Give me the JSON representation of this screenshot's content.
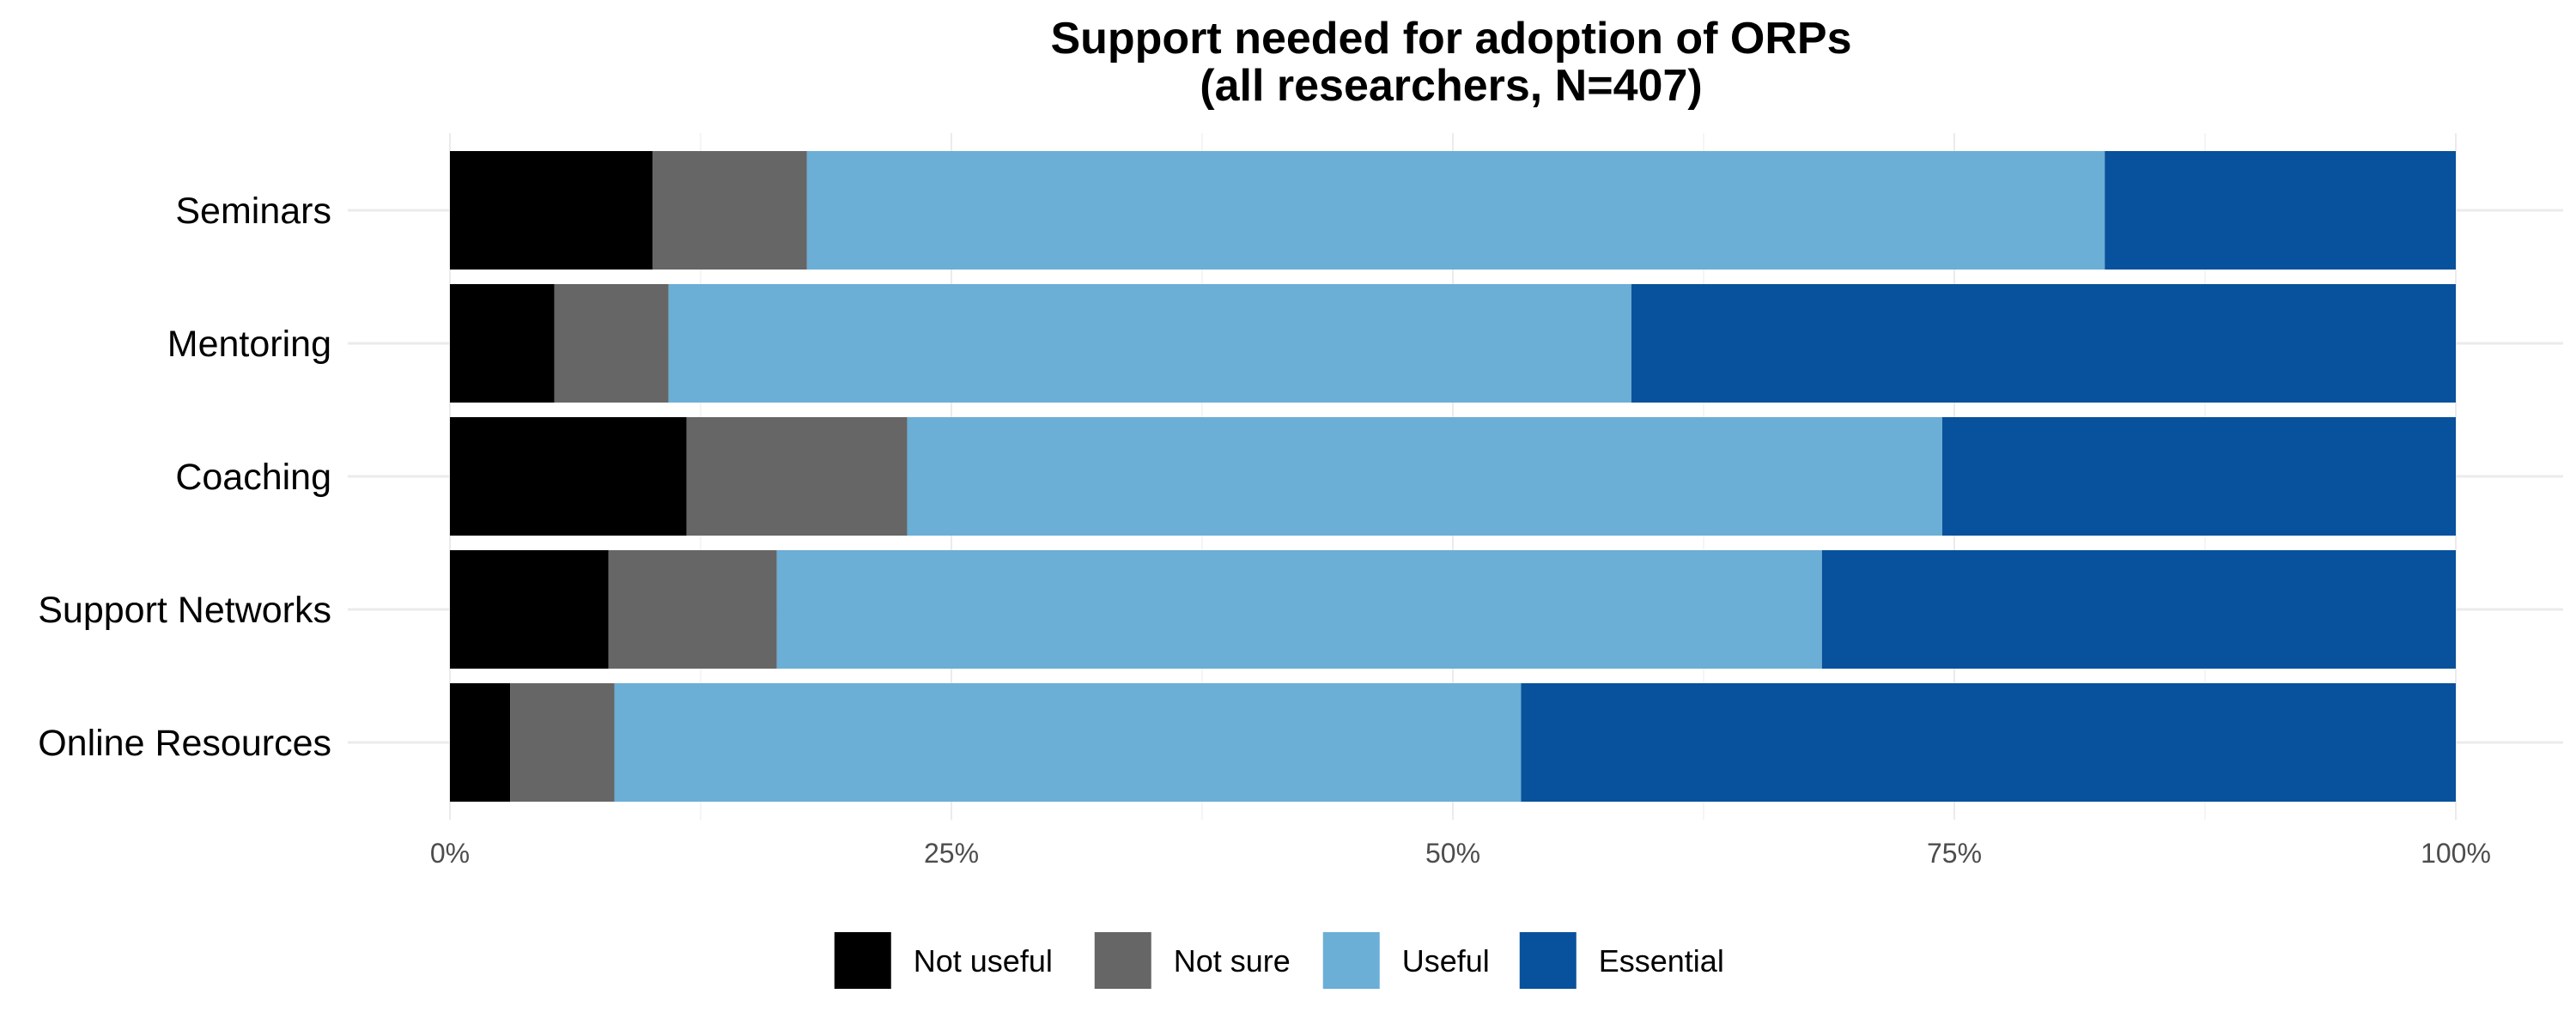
{
  "chart_data": {
    "type": "bar",
    "orientation": "horizontal",
    "stacked": true,
    "normalized_percent": true,
    "title": "Support needed for adoption of ORPs",
    "subtitle": "(all researchers, N=407)",
    "xlabel": "",
    "ylabel": "",
    "xlim": [
      0,
      100
    ],
    "x_ticks": [
      "0%",
      "25%",
      "50%",
      "75%",
      "100%"
    ],
    "categories": [
      "Seminars",
      "Mentoring",
      "Coaching",
      "Support Networks",
      "Online Resources"
    ],
    "series": [
      {
        "name": "Not useful",
        "color": "#000000",
        "values": [
          10.1,
          5.2,
          11.8,
          7.9,
          3.0
        ]
      },
      {
        "name": "Not sure",
        "color": "#666666",
        "values": [
          7.7,
          5.7,
          11.0,
          8.4,
          5.2
        ]
      },
      {
        "name": "Useful",
        "color": "#6baed6",
        "values": [
          64.7,
          48.0,
          51.6,
          52.1,
          45.2
        ]
      },
      {
        "name": "Essential",
        "color": "#08519c",
        "values": [
          17.5,
          41.1,
          25.6,
          31.6,
          46.6
        ]
      }
    ],
    "grid": true,
    "legend_position": "bottom"
  }
}
